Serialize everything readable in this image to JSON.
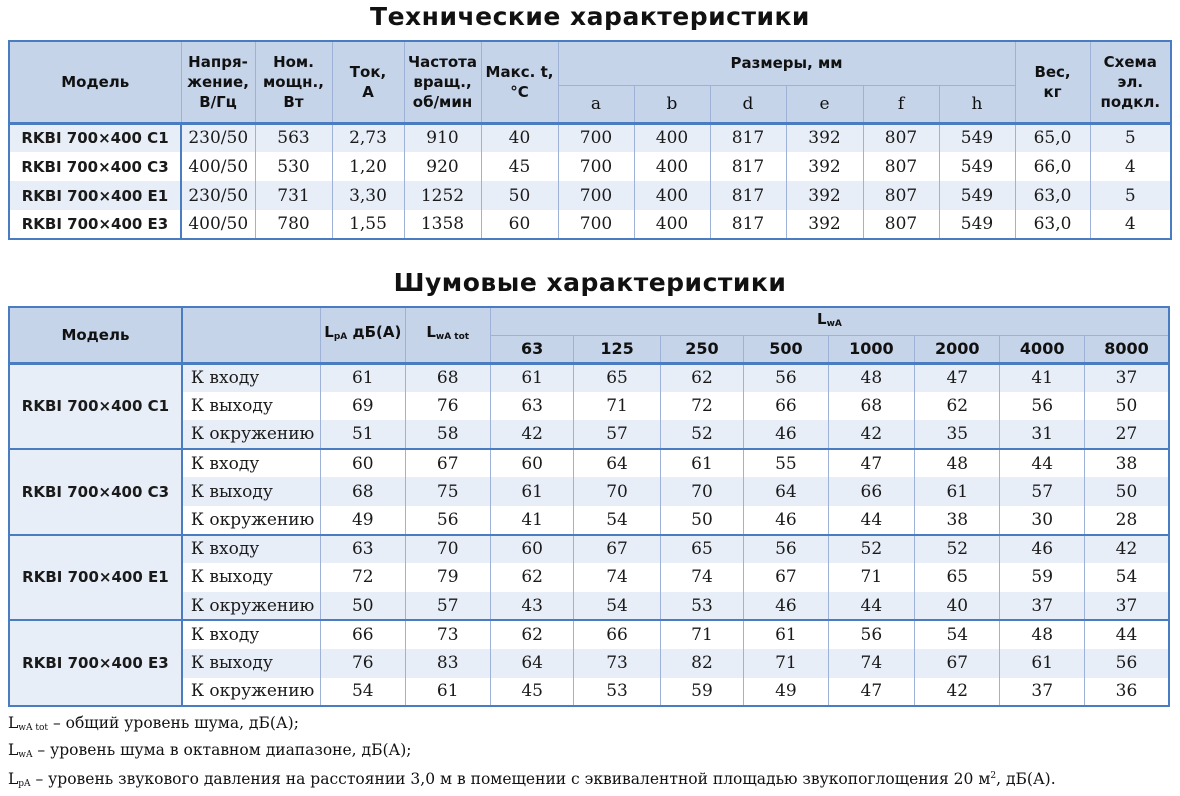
{
  "tech": {
    "title": "Технические характеристики",
    "headers": {
      "model": "Модель",
      "voltage": [
        "Напря-",
        "жение,",
        "В/Гц"
      ],
      "power": [
        "Ном.",
        "мощн.,",
        "Вт"
      ],
      "current": [
        "Ток,",
        "А"
      ],
      "speed": [
        "Частота",
        "вращ.,",
        "об/мин"
      ],
      "maxt": [
        "Макс. t,",
        "°С"
      ],
      "dims": "Размеры, мм",
      "dim_cols": [
        "a",
        "b",
        "d",
        "e",
        "f",
        "h"
      ],
      "weight": [
        "Вес,",
        "кг"
      ],
      "scheme": [
        "Схема",
        "эл.",
        "подкл."
      ]
    },
    "rows": [
      [
        "RKBI 700×400 C1",
        "230/50",
        "563",
        "2,73",
        "910",
        "40",
        "700",
        "400",
        "817",
        "392",
        "807",
        "549",
        "65,0",
        "5"
      ],
      [
        "RKBI 700×400 C3",
        "400/50",
        "530",
        "1,20",
        "920",
        "45",
        "700",
        "400",
        "817",
        "392",
        "807",
        "549",
        "66,0",
        "4"
      ],
      [
        "RKBI 700×400 E1",
        "230/50",
        "731",
        "3,30",
        "1252",
        "50",
        "700",
        "400",
        "817",
        "392",
        "807",
        "549",
        "63,0",
        "5"
      ],
      [
        "RKBI 700×400 E3",
        "400/50",
        "780",
        "1,55",
        "1358",
        "60",
        "700",
        "400",
        "817",
        "392",
        "807",
        "549",
        "63,0",
        "4"
      ]
    ]
  },
  "noise": {
    "title": "Шумовые характеристики",
    "headers": {
      "model": "Модель",
      "lpa": {
        "main": "L",
        "sub": "pA",
        "rest": " дБ(А)"
      },
      "lwatot": {
        "main": "L",
        "sub": "wA tot"
      },
      "lwa": {
        "main": "L",
        "sub": "wA"
      },
      "freqs": [
        "63",
        "125",
        "250",
        "500",
        "1000",
        "2000",
        "4000",
        "8000"
      ]
    },
    "groups": [
      {
        "model": "RKBI 700×400 C1",
        "rows": [
          [
            "К входу",
            "61",
            "68",
            "61",
            "65",
            "62",
            "56",
            "48",
            "47",
            "41",
            "37"
          ],
          [
            "К выходу",
            "69",
            "76",
            "63",
            "71",
            "72",
            "66",
            "68",
            "62",
            "56",
            "50"
          ],
          [
            "К окружению",
            "51",
            "58",
            "42",
            "57",
            "52",
            "46",
            "42",
            "35",
            "31",
            "27"
          ]
        ]
      },
      {
        "model": "RKBI 700×400 C3",
        "rows": [
          [
            "К входу",
            "60",
            "67",
            "60",
            "64",
            "61",
            "55",
            "47",
            "48",
            "44",
            "38"
          ],
          [
            "К выходу",
            "68",
            "75",
            "61",
            "70",
            "70",
            "64",
            "66",
            "61",
            "57",
            "50"
          ],
          [
            "К окружению",
            "49",
            "56",
            "41",
            "54",
            "50",
            "46",
            "44",
            "38",
            "30",
            "28"
          ]
        ]
      },
      {
        "model": "RKBI 700×400 E1",
        "rows": [
          [
            "К входу",
            "63",
            "70",
            "60",
            "67",
            "65",
            "56",
            "52",
            "52",
            "46",
            "42"
          ],
          [
            "К выходу",
            "72",
            "79",
            "62",
            "74",
            "74",
            "67",
            "71",
            "65",
            "59",
            "54"
          ],
          [
            "К окружению",
            "50",
            "57",
            "43",
            "54",
            "53",
            "46",
            "44",
            "40",
            "37",
            "37"
          ]
        ]
      },
      {
        "model": "RKBI 700×400 E3",
        "rows": [
          [
            "К входу",
            "66",
            "73",
            "62",
            "66",
            "71",
            "61",
            "56",
            "54",
            "48",
            "44"
          ],
          [
            "К выходу",
            "76",
            "83",
            "64",
            "73",
            "82",
            "71",
            "74",
            "67",
            "61",
            "56"
          ],
          [
            "К окружению",
            "54",
            "61",
            "45",
            "53",
            "59",
            "49",
            "47",
            "42",
            "37",
            "36"
          ]
        ]
      }
    ]
  },
  "footnotes": [
    {
      "main": "L",
      "sub": "wA tot",
      "text": " – общий уровень шума, дБ(А);"
    },
    {
      "main": "L",
      "sub": "wA",
      "text": " – уровень шума в октавном диапазоне, дБ(А);"
    },
    {
      "main": "L",
      "sub": "pA",
      "text": " – уровень звукового давления на расстоянии 3,0 м в помещении с эквивалентной площадью звукопоглощения 20 м",
      "sup": "2",
      "tail": ", дБ(А)."
    }
  ],
  "colors": {
    "header_bg": "#c6d4ea",
    "row_even": "#e8eef7",
    "row_odd": "#ffffff",
    "border_blue": "#4a7cc2",
    "border_light": "#9db2d6"
  }
}
